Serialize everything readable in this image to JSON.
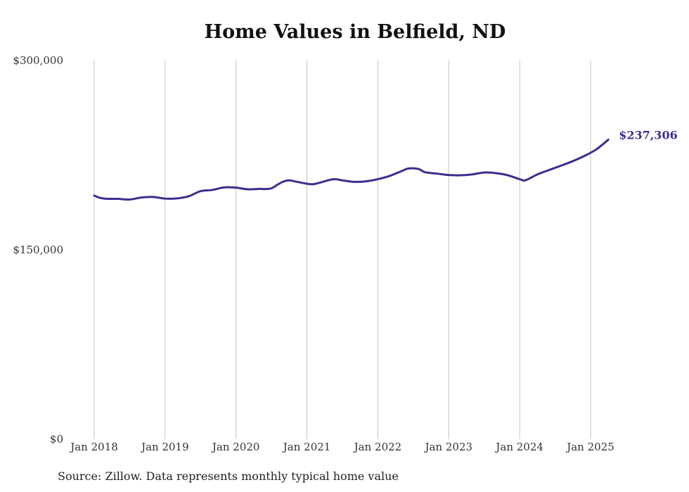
{
  "chart_data": {
    "type": "line",
    "title": "Home Values in Belfield, ND",
    "xlabel": "",
    "ylabel": "",
    "ylim": [
      0,
      300000
    ],
    "y_ticks": [
      {
        "value": 300000,
        "label": "$300,000"
      },
      {
        "value": 150000,
        "label": "$150,000"
      },
      {
        "value": 0,
        "label": "$0"
      }
    ],
    "x_ticks": [
      {
        "date": "2018-01",
        "label": "Jan 2018"
      },
      {
        "date": "2019-01",
        "label": "Jan 2019"
      },
      {
        "date": "2020-01",
        "label": "Jan 2020"
      },
      {
        "date": "2021-01",
        "label": "Jan 2021"
      },
      {
        "date": "2022-01",
        "label": "Jan 2022"
      },
      {
        "date": "2023-01",
        "label": "Jan 2023"
      },
      {
        "date": "2024-01",
        "label": "Jan 2024"
      },
      {
        "date": "2025-01",
        "label": "Jan 2025"
      }
    ],
    "grid": "vertical",
    "line_color": "#3b2f8f",
    "end_label": "$237,306",
    "series": [
      {
        "x": [
          "2018-01",
          "2018-02",
          "2018-03",
          "2018-05",
          "2018-07",
          "2018-09",
          "2018-11",
          "2019-01",
          "2019-03",
          "2019-05",
          "2019-07",
          "2019-09",
          "2019-11",
          "2020-01",
          "2020-03",
          "2020-05",
          "2020-06",
          "2020-07",
          "2020-08",
          "2020-09",
          "2020-10",
          "2020-11",
          "2021-01",
          "2021-02",
          "2021-03",
          "2021-05",
          "2021-06",
          "2021-07",
          "2021-09",
          "2021-11",
          "2022-01",
          "2022-03",
          "2022-05",
          "2022-06",
          "2022-07",
          "2022-08",
          "2022-09",
          "2022-11",
          "2023-01",
          "2023-03",
          "2023-05",
          "2023-07",
          "2023-09",
          "2023-11",
          "2024-01",
          "2024-02",
          "2024-04",
          "2024-06",
          "2024-08",
          "2024-10",
          "2024-12",
          "2025-02",
          "2025-04"
        ],
        "values": [
          193000,
          191200,
          190500,
          190400,
          189900,
          191500,
          191900,
          190600,
          190800,
          192500,
          196500,
          197500,
          199500,
          199300,
          198000,
          198300,
          198200,
          198800,
          201600,
          204100,
          205100,
          204200,
          202400,
          202000,
          203000,
          205600,
          205900,
          205100,
          203900,
          204300,
          206000,
          208600,
          212400,
          214300,
          214600,
          213900,
          211500,
          210400,
          209300,
          209100,
          209800,
          211300,
          210800,
          209100,
          206000,
          205200,
          209800,
          213300,
          216700,
          220300,
          224500,
          229700,
          237306
        ]
      }
    ]
  },
  "source": "Source: Zillow. Data represents monthly typical home value"
}
